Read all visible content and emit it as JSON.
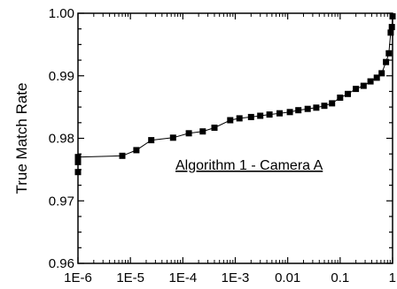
{
  "chart_data": {
    "type": "line",
    "title": "",
    "xlabel": "",
    "ylabel": "True Match Rate",
    "x_scale": "log",
    "xlim": [
      1e-06,
      1
    ],
    "ylim": [
      0.96,
      1.0
    ],
    "x_ticks": [
      {
        "value": 1e-06,
        "label": "1E-6"
      },
      {
        "value": 1e-05,
        "label": "1E-5"
      },
      {
        "value": 0.0001,
        "label": "1E-4"
      },
      {
        "value": 0.001,
        "label": "1E-3"
      },
      {
        "value": 0.01,
        "label": "0.01"
      },
      {
        "value": 0.1,
        "label": "0.1"
      },
      {
        "value": 1,
        "label": "1"
      }
    ],
    "y_ticks": [
      {
        "value": 0.96,
        "label": "0.96"
      },
      {
        "value": 0.97,
        "label": "0.97"
      },
      {
        "value": 0.98,
        "label": "0.98"
      },
      {
        "value": 0.99,
        "label": "0.99"
      },
      {
        "value": 1.0,
        "label": "1.00"
      }
    ],
    "grid": false,
    "annotation": "Algorithm 1 - Camera A",
    "series": [
      {
        "marker": "square",
        "color": "#000000",
        "x": [
          1e-06,
          1e-06,
          1e-06,
          7e-06,
          1.3e-05,
          2.5e-05,
          6.5e-05,
          0.00013,
          0.00024,
          0.0004,
          0.0008,
          0.0012,
          0.002,
          0.003,
          0.0045,
          0.007,
          0.011,
          0.016,
          0.024,
          0.035,
          0.05,
          0.07,
          0.1,
          0.14,
          0.2,
          0.28,
          0.38,
          0.5,
          0.62,
          0.75,
          0.85,
          0.92,
          0.97,
          1.0
        ],
        "y": [
          0.9746,
          0.9762,
          0.977,
          0.9772,
          0.9781,
          0.9797,
          0.9801,
          0.9808,
          0.9811,
          0.9817,
          0.9829,
          0.9832,
          0.9834,
          0.9836,
          0.9838,
          0.984,
          0.9842,
          0.9845,
          0.9847,
          0.9849,
          0.9852,
          0.9856,
          0.9865,
          0.9871,
          0.9879,
          0.9884,
          0.9891,
          0.9897,
          0.9904,
          0.9922,
          0.9936,
          0.9969,
          0.9978,
          0.9995
        ]
      }
    ]
  }
}
